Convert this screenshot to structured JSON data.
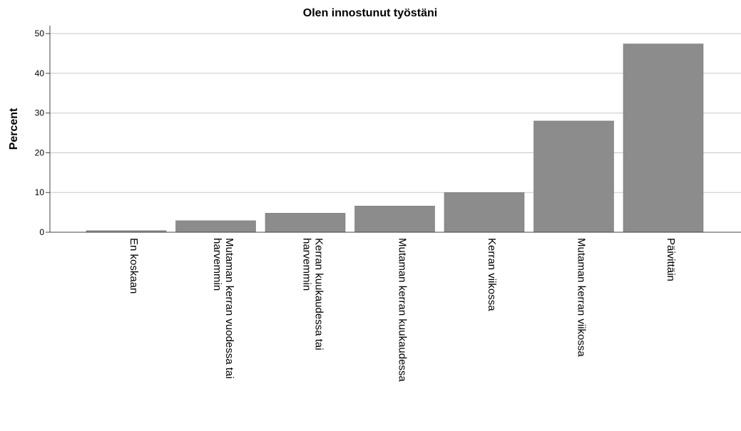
{
  "chart_data": {
    "type": "bar",
    "title": "Olen innostunut työstäni",
    "xlabel": "",
    "ylabel": "Percent",
    "ylim": [
      0,
      52
    ],
    "yticks": [
      0,
      10,
      20,
      30,
      40,
      50
    ],
    "grid": true,
    "categories": [
      [
        "En koskaan"
      ],
      [
        "Mutaman kerran vuodessa tai",
        "harvemmin"
      ],
      [
        "Kerran kuukaudessa tai",
        "harvemmin"
      ],
      [
        "Mutaman kerran kuukaudessa"
      ],
      [
        "Kerran viikossa"
      ],
      [
        "Mutaman kerran viikossa"
      ],
      [
        "Päivittäin"
      ]
    ],
    "values": [
      0.4,
      2.9,
      4.8,
      6.6,
      10.0,
      28.0,
      47.4
    ],
    "colors": {
      "bar": "#8c8c8c",
      "grid": "#c8c8c8",
      "axis": "#444444"
    }
  }
}
